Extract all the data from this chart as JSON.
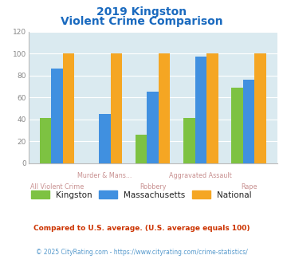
{
  "title_line1": "2019 Kingston",
  "title_line2": "Violent Crime Comparison",
  "kingston": [
    41,
    0,
    26,
    41,
    69
  ],
  "massachusetts": [
    86,
    45,
    65,
    97,
    76
  ],
  "national": [
    100,
    100,
    100,
    100,
    100
  ],
  "colors": {
    "kingston": "#7dc242",
    "massachusetts": "#4090e0",
    "national": "#f5a623"
  },
  "ylim": [
    0,
    120
  ],
  "yticks": [
    0,
    20,
    40,
    60,
    80,
    100,
    120
  ],
  "background_color": "#daeaf0",
  "title_color": "#1a6abf",
  "xlabel_color": "#c89090",
  "legend_labels": [
    "Kingston",
    "Massachusetts",
    "National"
  ],
  "footnote1": "Compared to U.S. average. (U.S. average equals 100)",
  "footnote2": "© 2025 CityRating.com - https://www.cityrating.com/crime-statistics/",
  "footnote1_color": "#cc3300",
  "footnote2_color": "#5599cc"
}
